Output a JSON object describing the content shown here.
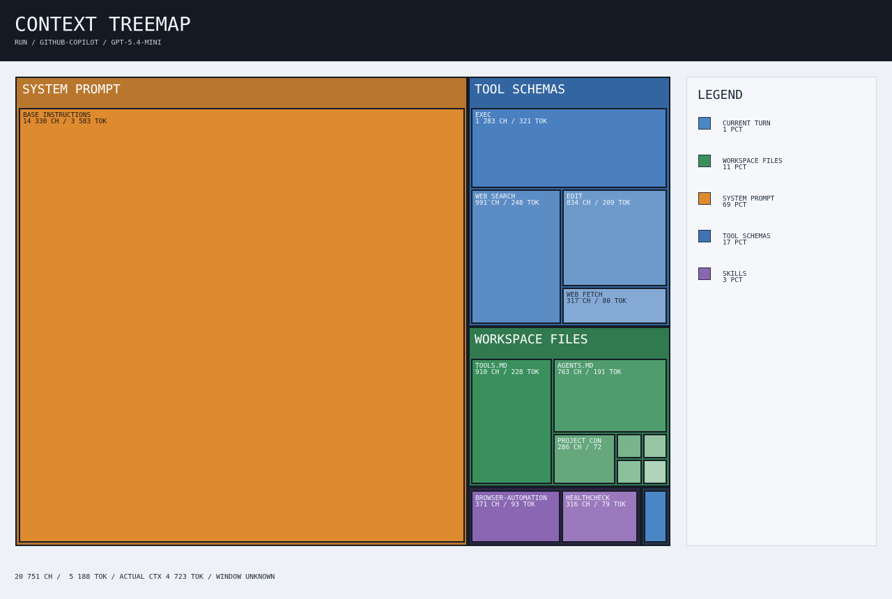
{
  "header": {
    "title": "CONTEXT TREEMAP",
    "subtitle": "RUN / GITHUB-COPILOT / GPT-5.4-MINI"
  },
  "treemap": {
    "groups": [
      {
        "label": "SYSTEM PROMPT",
        "items": [
          {
            "name": "BASE INSTRUCTIONS",
            "detail": "14 330 CH / 3 583 TOK"
          }
        ]
      },
      {
        "label": "TOOL SCHEMAS",
        "items": [
          {
            "name": "EXEC",
            "detail": "1 283 CH / 321 TOK"
          },
          {
            "name": "WEB_SEARCH",
            "detail": "991 CH / 248 TOK"
          },
          {
            "name": "EDIT",
            "detail": "834 CH / 209 TOK"
          },
          {
            "name": "WEB_FETCH",
            "detail": "317 CH / 80 TOK"
          }
        ]
      },
      {
        "label": "WORKSPACE FILES",
        "items": [
          {
            "name": "TOOLS.MD",
            "detail": "910 CH / 228 TOK"
          },
          {
            "name": "AGENTS.MD",
            "detail": "763 CH / 191 TOK"
          },
          {
            "name": "PROJECT CON",
            "detail": "286 CH / 72"
          }
        ]
      },
      {
        "items": [
          {
            "name": "BROWSER-AUTOMATION",
            "detail": "371 CH / 93 TOK"
          },
          {
            "name": "HEALTHCHECK",
            "detail": "316 CH / 79 TOK"
          }
        ]
      }
    ]
  },
  "legend": {
    "title": "LEGEND",
    "items": [
      {
        "label": "CURRENT TURN",
        "detail": "1 PCT"
      },
      {
        "label": "WORKSPACE FILES",
        "detail": "11 PCT"
      },
      {
        "label": "SYSTEM PROMPT",
        "detail": "69 PCT"
      },
      {
        "label": "TOOL SCHEMAS",
        "detail": "17 PCT"
      },
      {
        "label": "SKILLS",
        "detail": "3 PCT"
      }
    ]
  },
  "footer": "20 751 CH /  5 188 TOK / ACTUAL CTX 4 723 TOK / WINDOW UNKNOWN"
}
